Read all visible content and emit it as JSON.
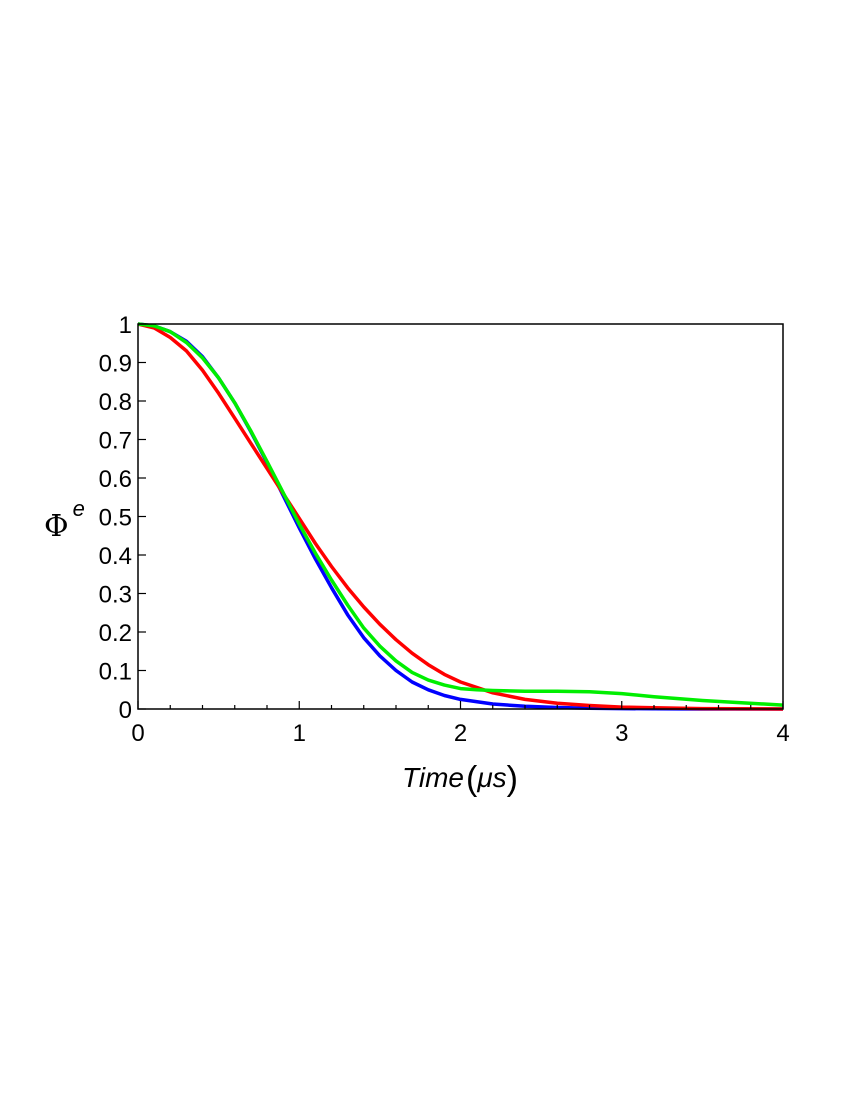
{
  "chart_data": {
    "type": "line",
    "title": "",
    "xlabel_main": "Time",
    "xlabel_unit": "μs",
    "ylabel_symbol": "Φ",
    "ylabel_superscript": "e",
    "xlim": [
      0,
      4
    ],
    "ylim": [
      0,
      1
    ],
    "x_ticks": [
      0,
      1,
      2,
      3,
      4
    ],
    "y_ticks": [
      0,
      0.1,
      0.2,
      0.3,
      0.4,
      0.5,
      0.6,
      0.7,
      0.8,
      0.9,
      1
    ],
    "grid": false,
    "legend": "none",
    "series": [
      {
        "color": "#0000ff",
        "x": [
          0,
          0.1,
          0.2,
          0.3,
          0.4,
          0.5,
          0.6,
          0.7,
          0.8,
          0.9,
          1.0,
          1.1,
          1.2,
          1.3,
          1.4,
          1.5,
          1.6,
          1.7,
          1.8,
          1.9,
          2.0,
          2.2,
          2.4,
          2.6,
          2.8,
          3.0,
          3.2,
          3.5,
          4.0
        ],
        "y": [
          1.0,
          0.995,
          0.98,
          0.955,
          0.915,
          0.86,
          0.795,
          0.72,
          0.64,
          0.555,
          0.47,
          0.39,
          0.315,
          0.245,
          0.185,
          0.138,
          0.1,
          0.07,
          0.05,
          0.035,
          0.025,
          0.013,
          0.007,
          0.004,
          0.002,
          0.001,
          0.0005,
          0.0,
          0.0
        ]
      },
      {
        "color": "#ff0000",
        "x": [
          0,
          0.1,
          0.2,
          0.3,
          0.4,
          0.5,
          0.6,
          0.7,
          0.8,
          0.9,
          1.0,
          1.1,
          1.2,
          1.3,
          1.4,
          1.5,
          1.6,
          1.7,
          1.8,
          1.9,
          2.0,
          2.2,
          2.4,
          2.6,
          2.8,
          3.0,
          3.2,
          3.5,
          4.0
        ],
        "y": [
          1.0,
          0.99,
          0.965,
          0.93,
          0.88,
          0.82,
          0.755,
          0.69,
          0.625,
          0.56,
          0.495,
          0.43,
          0.37,
          0.315,
          0.265,
          0.22,
          0.18,
          0.145,
          0.115,
          0.09,
          0.07,
          0.042,
          0.025,
          0.015,
          0.009,
          0.005,
          0.003,
          0.001,
          0.0
        ]
      },
      {
        "color": "#00ee00",
        "x": [
          0,
          0.1,
          0.2,
          0.3,
          0.4,
          0.5,
          0.6,
          0.7,
          0.8,
          0.9,
          1.0,
          1.1,
          1.2,
          1.3,
          1.4,
          1.5,
          1.6,
          1.7,
          1.8,
          1.9,
          2.0,
          2.1,
          2.2,
          2.4,
          2.6,
          2.8,
          3.0,
          3.2,
          3.5,
          4.0
        ],
        "y": [
          1.0,
          0.995,
          0.98,
          0.952,
          0.912,
          0.86,
          0.795,
          0.722,
          0.643,
          0.562,
          0.48,
          0.405,
          0.335,
          0.27,
          0.21,
          0.163,
          0.125,
          0.095,
          0.075,
          0.062,
          0.053,
          0.05,
          0.048,
          0.046,
          0.046,
          0.045,
          0.04,
          0.032,
          0.022,
          0.01
        ]
      }
    ]
  }
}
